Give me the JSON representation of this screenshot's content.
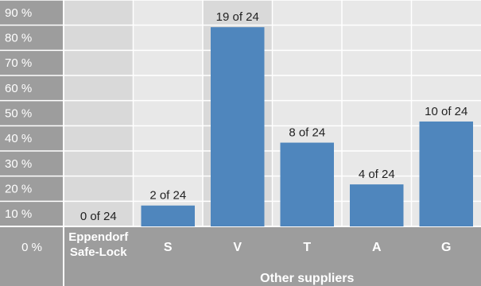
{
  "chart_data": {
    "type": "bar",
    "title": "",
    "ylabel": "",
    "xlabel": "Other suppliers",
    "ylim": [
      0,
      90
    ],
    "y_ticks": [
      "0 %",
      "10 %",
      "20 %",
      "30 %",
      "40 %",
      "50 %",
      "60 %",
      "70 %",
      "80 %",
      "90 %"
    ],
    "categories": [
      "Eppendorf Safe-Lock",
      "S",
      "V",
      "T",
      "A",
      "G"
    ],
    "category_lines": [
      [
        "Eppendorf",
        "Safe-Lock"
      ],
      [
        "S"
      ],
      [
        "V"
      ],
      [
        "T"
      ],
      [
        "A"
      ],
      [
        "G"
      ]
    ],
    "values": [
      0,
      8.3,
      79.2,
      33.3,
      16.7,
      41.7
    ],
    "data_labels": [
      "0 of 24",
      "2 of 24",
      "19 of 24",
      "8 of 24",
      "4 of 24",
      "10 of 24"
    ],
    "grid": true,
    "group_label_applies_to": [
      "S",
      "V",
      "T",
      "A",
      "G"
    ]
  },
  "colors": {
    "bar": "#4f86bd",
    "axis_bg": "#9d9d9d",
    "plot_light": "#e8e8e8",
    "plot_dark": "#d9d9d9",
    "grid_line": "#ffffff",
    "data_label_text": "#222222",
    "axis_text": "#ffffff"
  }
}
